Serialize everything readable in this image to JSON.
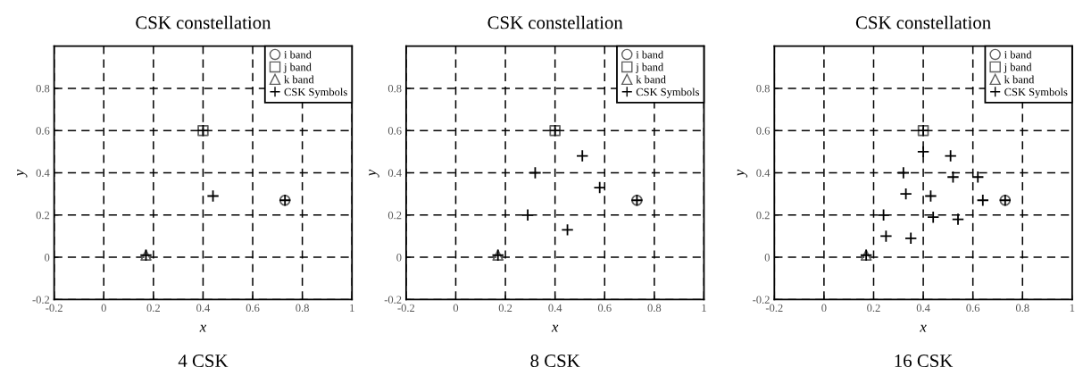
{
  "chart_data": [
    {
      "type": "scatter",
      "title": "CSK constellation",
      "subtitle": "4 CSK",
      "xlabel": "x",
      "ylabel": "y",
      "xlim": [
        -0.2,
        1
      ],
      "ylim": [
        -0.2,
        1
      ],
      "xticks": [
        -0.2,
        0,
        0.2,
        0.4,
        0.6,
        0.8,
        1
      ],
      "yticks": [
        -0.2,
        0,
        0.2,
        0.4,
        0.6,
        0.8
      ],
      "grid": true,
      "line_style": "dashed",
      "legend": "top right",
      "series": [
        {
          "name": "i band",
          "color": "#606060",
          "marker": "circle",
          "x": [
            0.73
          ],
          "values": [
            0.27
          ]
        },
        {
          "name": "j band",
          "color": "#606060",
          "marker": "square",
          "x": [
            0.4
          ],
          "values": [
            0.6
          ]
        },
        {
          "name": "k band",
          "color": "#606060",
          "marker": "triangle",
          "x": [
            0.17
          ],
          "values": [
            0.01
          ]
        },
        {
          "name": "CSK Symbols",
          "color": "#000000",
          "marker": "cross",
          "x": [
            0.4,
            0.17,
            0.73,
            0.44
          ],
          "values": [
            0.6,
            0.01,
            0.27,
            0.29
          ]
        }
      ]
    },
    {
      "type": "scatter",
      "title": "CSK constellation",
      "subtitle": "8 CSK",
      "xlabel": "x",
      "ylabel": "y",
      "xlim": [
        -0.2,
        1
      ],
      "ylim": [
        -0.2,
        1
      ],
      "xticks": [
        -0.2,
        0,
        0.2,
        0.4,
        0.6,
        0.8,
        1
      ],
      "yticks": [
        -0.2,
        0,
        0.2,
        0.4,
        0.6,
        0.8
      ],
      "grid": true,
      "line_style": "dashed",
      "legend": "top right",
      "series": [
        {
          "name": "i band",
          "color": "#606060",
          "marker": "circle",
          "x": [
            0.73
          ],
          "values": [
            0.27
          ]
        },
        {
          "name": "j band",
          "color": "#606060",
          "marker": "square",
          "x": [
            0.4
          ],
          "values": [
            0.6
          ]
        },
        {
          "name": "k band",
          "color": "#606060",
          "marker": "triangle",
          "x": [
            0.17
          ],
          "values": [
            0.01
          ]
        },
        {
          "name": "CSK Symbols",
          "color": "#000000",
          "marker": "cross",
          "x": [
            0.4,
            0.17,
            0.73,
            0.51,
            0.32,
            0.58,
            0.29,
            0.45
          ],
          "values": [
            0.6,
            0.01,
            0.27,
            0.48,
            0.4,
            0.33,
            0.2,
            0.13
          ]
        }
      ]
    },
    {
      "type": "scatter",
      "title": "CSK constellation",
      "subtitle": "16 CSK",
      "xlabel": "x",
      "ylabel": "y",
      "xlim": [
        -0.2,
        1
      ],
      "ylim": [
        -0.2,
        1
      ],
      "xticks": [
        -0.2,
        0,
        0.2,
        0.4,
        0.6,
        0.8,
        1
      ],
      "yticks": [
        -0.2,
        0,
        0.2,
        0.4,
        0.6,
        0.8
      ],
      "grid": true,
      "line_style": "dashed",
      "legend": "top right",
      "series": [
        {
          "name": "i band",
          "color": "#606060",
          "marker": "circle",
          "x": [
            0.73
          ],
          "values": [
            0.27
          ]
        },
        {
          "name": "j band",
          "color": "#606060",
          "marker": "square",
          "x": [
            0.4
          ],
          "values": [
            0.6
          ]
        },
        {
          "name": "k band",
          "color": "#606060",
          "marker": "triangle",
          "x": [
            0.17
          ],
          "values": [
            0.01
          ]
        },
        {
          "name": "CSK Symbols",
          "color": "#000000",
          "marker": "cross",
          "x": [
            0.4,
            0.17,
            0.73,
            0.4,
            0.51,
            0.32,
            0.52,
            0.62,
            0.33,
            0.43,
            0.64,
            0.24,
            0.44,
            0.54,
            0.25,
            0.35
          ],
          "values": [
            0.6,
            0.01,
            0.27,
            0.5,
            0.48,
            0.4,
            0.38,
            0.38,
            0.3,
            0.29,
            0.27,
            0.2,
            0.19,
            0.18,
            0.1,
            0.09
          ]
        }
      ]
    }
  ]
}
